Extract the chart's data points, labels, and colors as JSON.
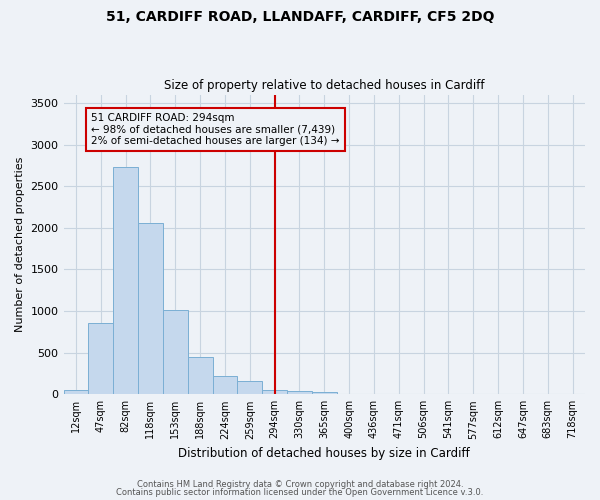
{
  "title": "51, CARDIFF ROAD, LLANDAFF, CARDIFF, CF5 2DQ",
  "subtitle": "Size of property relative to detached houses in Cardiff",
  "xlabel": "Distribution of detached houses by size in Cardiff",
  "ylabel": "Number of detached properties",
  "bin_labels": [
    "12sqm",
    "47sqm",
    "82sqm",
    "118sqm",
    "153sqm",
    "188sqm",
    "224sqm",
    "259sqm",
    "294sqm",
    "330sqm",
    "365sqm",
    "400sqm",
    "436sqm",
    "471sqm",
    "506sqm",
    "541sqm",
    "577sqm",
    "612sqm",
    "647sqm",
    "683sqm",
    "718sqm"
  ],
  "bin_values": [
    55,
    855,
    2730,
    2060,
    1010,
    450,
    215,
    155,
    55,
    45,
    25,
    0,
    0,
    0,
    0,
    0,
    0,
    0,
    0,
    0,
    0
  ],
  "bar_color": "#c5d8ed",
  "bar_edge_color": "#7bafd4",
  "vline_x_label": "294sqm",
  "vline_bin_index": 8,
  "vline_color": "#cc0000",
  "annotation_line1": "51 CARDIFF ROAD: 294sqm",
  "annotation_line2": "← 98% of detached houses are smaller (7,439)",
  "annotation_line3": "2% of semi-detached houses are larger (134) →",
  "ylim": [
    0,
    3600
  ],
  "yticks": [
    0,
    500,
    1000,
    1500,
    2000,
    2500,
    3000,
    3500
  ],
  "footer1": "Contains HM Land Registry data © Crown copyright and database right 2024.",
  "footer2": "Contains public sector information licensed under the Open Government Licence v.3.0.",
  "bg_color": "#eef2f7",
  "grid_color": "#c8d4e0"
}
